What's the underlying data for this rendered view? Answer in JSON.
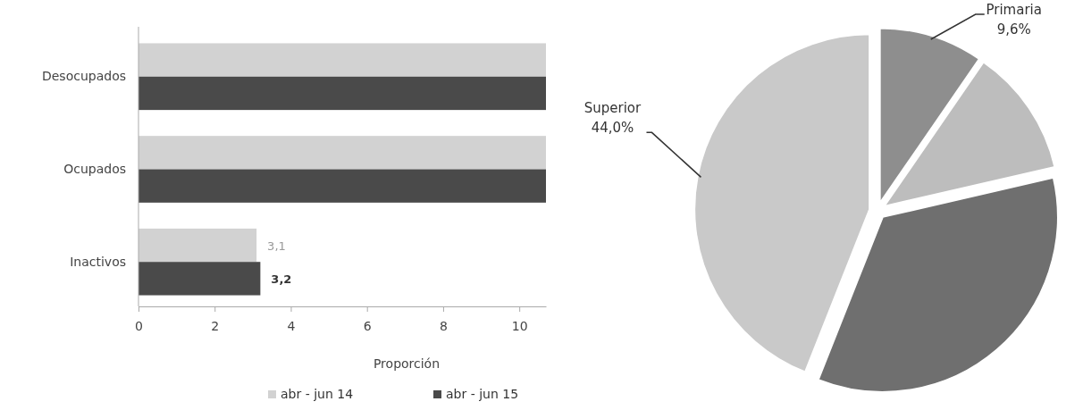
{
  "chart_data": [
    {
      "type": "bar",
      "orientation": "horizontal",
      "xlabel": "Proporción",
      "categories": [
        "Desocupados",
        "Ocupados",
        "Inactivos"
      ],
      "series": [
        {
          "name": "abr - jun 14",
          "color": "#d2d2d2",
          "values": [
            10.7,
            10.7,
            3.1
          ],
          "value_labels": [
            null,
            null,
            "3,1"
          ]
        },
        {
          "name": "abr - jun 15",
          "color": "#4a4a4a",
          "values": [
            10.7,
            10.7,
            3.2
          ],
          "value_labels": [
            null,
            null,
            "3,2"
          ]
        }
      ],
      "xlim": [
        0,
        10.7
      ],
      "xticks": [
        0,
        2,
        4,
        6,
        8,
        10
      ],
      "legend": "bottom",
      "grid": false
    },
    {
      "type": "pie",
      "categories": [
        "Primaria",
        null,
        null,
        "Superior"
      ],
      "values": [
        9.6,
        11.8,
        34.6,
        44.0
      ],
      "value_labels": [
        "9,6%",
        null,
        null,
        "44,0%"
      ],
      "colors": [
        "#8e8e8e",
        "#bdbdbd",
        "#6f6f6f",
        "#c9c9c9"
      ]
    }
  ]
}
